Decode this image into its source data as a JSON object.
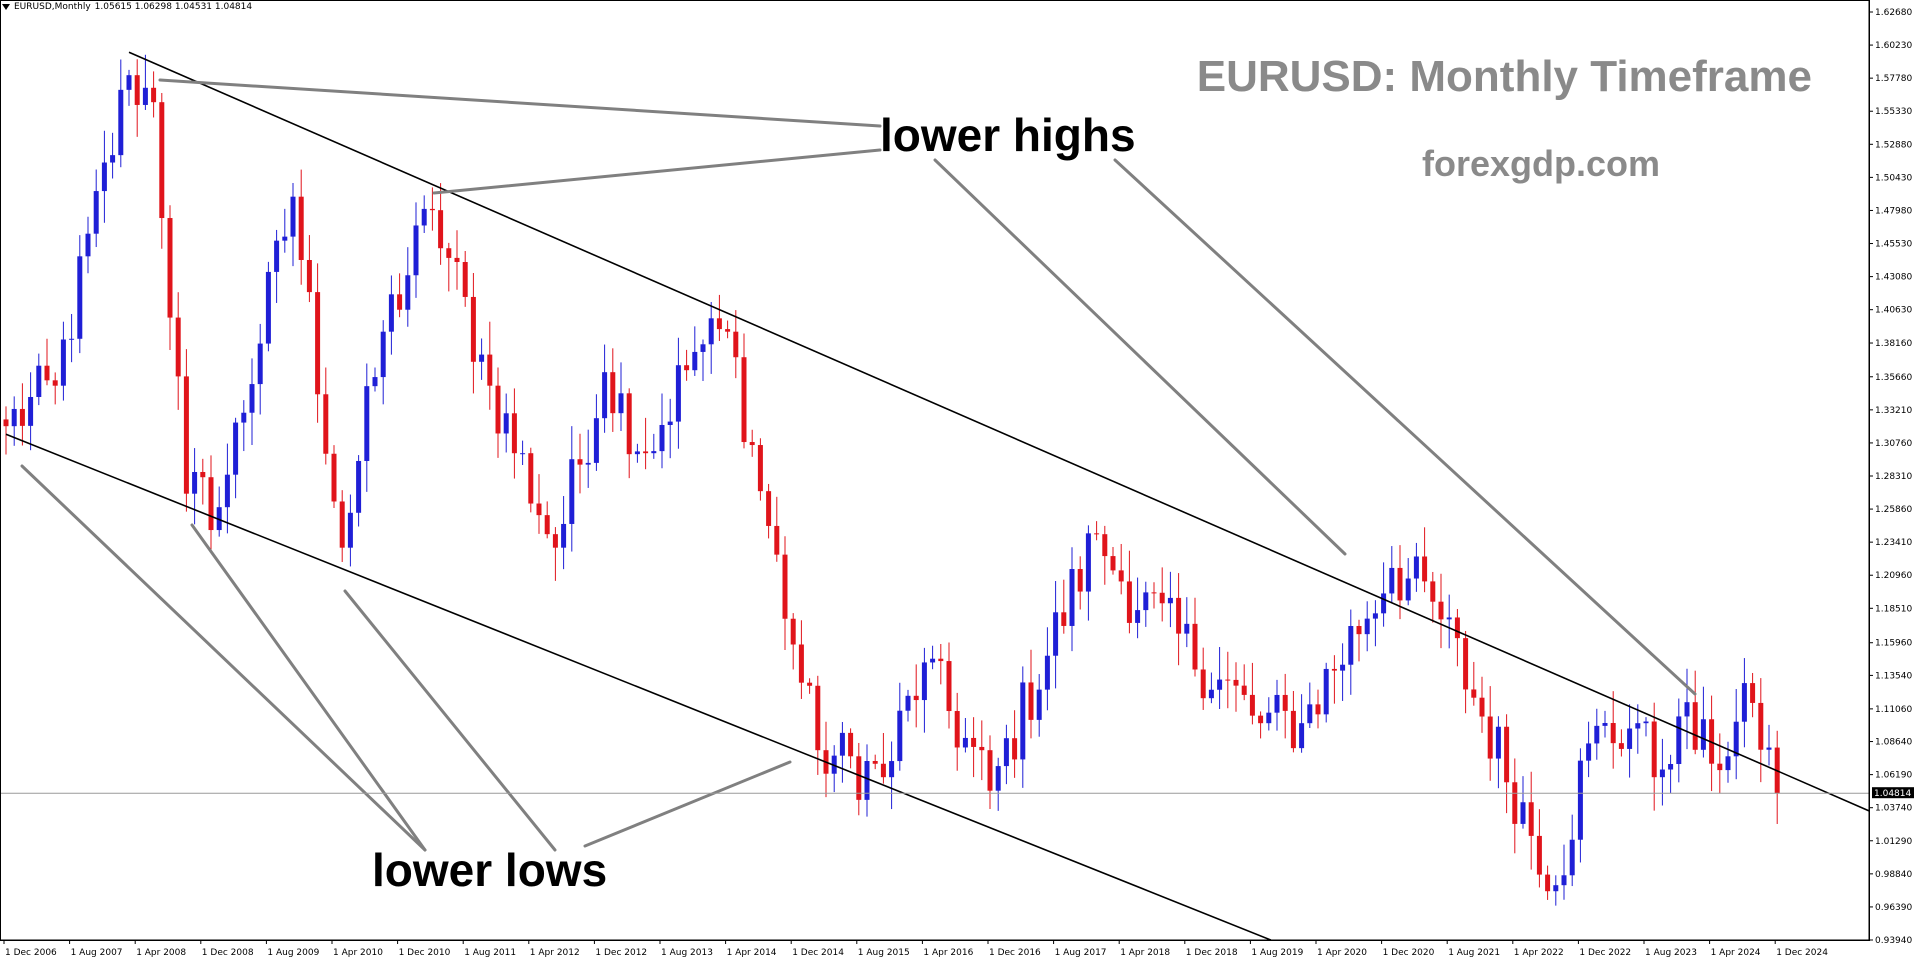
{
  "header": {
    "symbol": "EURUSD,Monthly",
    "ohlc": "1.05615 1.06298 1.04531 1.04814"
  },
  "watermark": {
    "title": "EURUSD: Monthly Timeframe",
    "site": "forexgdp.com"
  },
  "annotations": {
    "lower_highs": "lower highs",
    "lower_lows": "lower lows"
  },
  "colors": {
    "bull": "#1f1fd6",
    "bear": "#e0141b",
    "trendline": "#000000",
    "pointer": "#808080",
    "watermark": "#8a8a8a"
  },
  "chart_data": {
    "type": "candlestick",
    "symbol": "EURUSD",
    "timeframe": "Monthly",
    "current_price": "1.04814",
    "y_ticks": [
      "1.62680",
      "1.60230",
      "1.57780",
      "1.55330",
      "1.52880",
      "1.50430",
      "1.47980",
      "1.45530",
      "1.43080",
      "1.40630",
      "1.38160",
      "1.35660",
      "1.33210",
      "1.30760",
      "1.28310",
      "1.25860",
      "1.23410",
      "1.20960",
      "1.18510",
      "1.15960",
      "1.13540",
      "1.11060",
      "1.08640",
      "1.06190",
      "1.03740",
      "1.01290",
      "0.98840",
      "0.96390",
      "0.93940"
    ],
    "ylim": [
      0.9394,
      1.6268
    ],
    "x_ticks": [
      "1 Dec 2006",
      "1 Aug 2007",
      "1 Apr 2008",
      "1 Dec 2008",
      "1 Aug 2009",
      "1 Apr 2010",
      "1 Dec 2010",
      "1 Aug 2011",
      "1 Apr 2012",
      "1 Dec 2012",
      "1 Aug 2013",
      "1 Apr 2014",
      "1 Dec 2014",
      "1 Aug 2015",
      "1 Apr 2016",
      "1 Dec 2016",
      "1 Aug 2017",
      "1 Apr 2018",
      "1 Dec 2018",
      "1 Aug 2019",
      "1 Apr 2020",
      "1 Dec 2020",
      "1 Aug 2021",
      "1 Apr 2022",
      "1 Dec 2022",
      "1 Aug 2023",
      "1 Apr 2024",
      "1 Dec 2024"
    ],
    "anchors": [
      {
        "date": "Dec 2006",
        "price": 1.32
      },
      {
        "date": "Jun 2007",
        "price": 1.35
      },
      {
        "date": "Mar 2008",
        "price": 1.58
      },
      {
        "date": "Jun 2008",
        "price": 1.56
      },
      {
        "date": "Oct 2008",
        "price": 1.27
      },
      {
        "date": "Feb 2009",
        "price": 1.26
      },
      {
        "date": "Nov 2009",
        "price": 1.49
      },
      {
        "date": "May 2010",
        "price": 1.23
      },
      {
        "date": "Oct 2010",
        "price": 1.39
      },
      {
        "date": "Apr 2011",
        "price": 1.48
      },
      {
        "date": "Nov 2011",
        "price": 1.35
      },
      {
        "date": "Jul 2012",
        "price": 1.23
      },
      {
        "date": "Jan 2013",
        "price": 1.36
      },
      {
        "date": "Jun 2013",
        "price": 1.3
      },
      {
        "date": "Dec 2013",
        "price": 1.375
      },
      {
        "date": "Apr 2014",
        "price": 1.39
      },
      {
        "date": "Jan 2015",
        "price": 1.13
      },
      {
        "date": "Mar 2015",
        "price": 1.08
      },
      {
        "date": "Nov 2015",
        "price": 1.06
      },
      {
        "date": "Apr 2016",
        "price": 1.145
      },
      {
        "date": "Dec 2016",
        "price": 1.05
      },
      {
        "date": "Jan 2018",
        "price": 1.24
      },
      {
        "date": "Apr 2018",
        "price": 1.205
      },
      {
        "date": "Sep 2019",
        "price": 1.1
      },
      {
        "date": "Feb 2020",
        "price": 1.1
      },
      {
        "date": "Jan 2021",
        "price": 1.215
      },
      {
        "date": "Jun 2021",
        "price": 1.19
      },
      {
        "date": "Sep 2022",
        "price": 0.98
      },
      {
        "date": "Jan 2023",
        "price": 1.085
      },
      {
        "date": "Jul 2023",
        "price": 1.1
      },
      {
        "date": "Sep 2023",
        "price": 1.06
      },
      {
        "date": "Dec 2023",
        "price": 1.105
      },
      {
        "date": "Apr 2024",
        "price": 1.07
      },
      {
        "date": "Sep 2024",
        "price": 1.115
      },
      {
        "date": "Dec 2024",
        "price": 1.048
      }
    ],
    "trendlines": [
      {
        "name": "upper",
        "from": {
          "date": "Mar 2008",
          "price": 1.597
        },
        "to": {
          "date": "Oct 2024",
          "price": 1.07
        }
      },
      {
        "name": "lower",
        "from": {
          "date": "Dec 2006",
          "price": 1.314
        },
        "to": {
          "date": "Oct 2019",
          "price": 0.94
        }
      }
    ],
    "grid": false,
    "legend": "none"
  }
}
